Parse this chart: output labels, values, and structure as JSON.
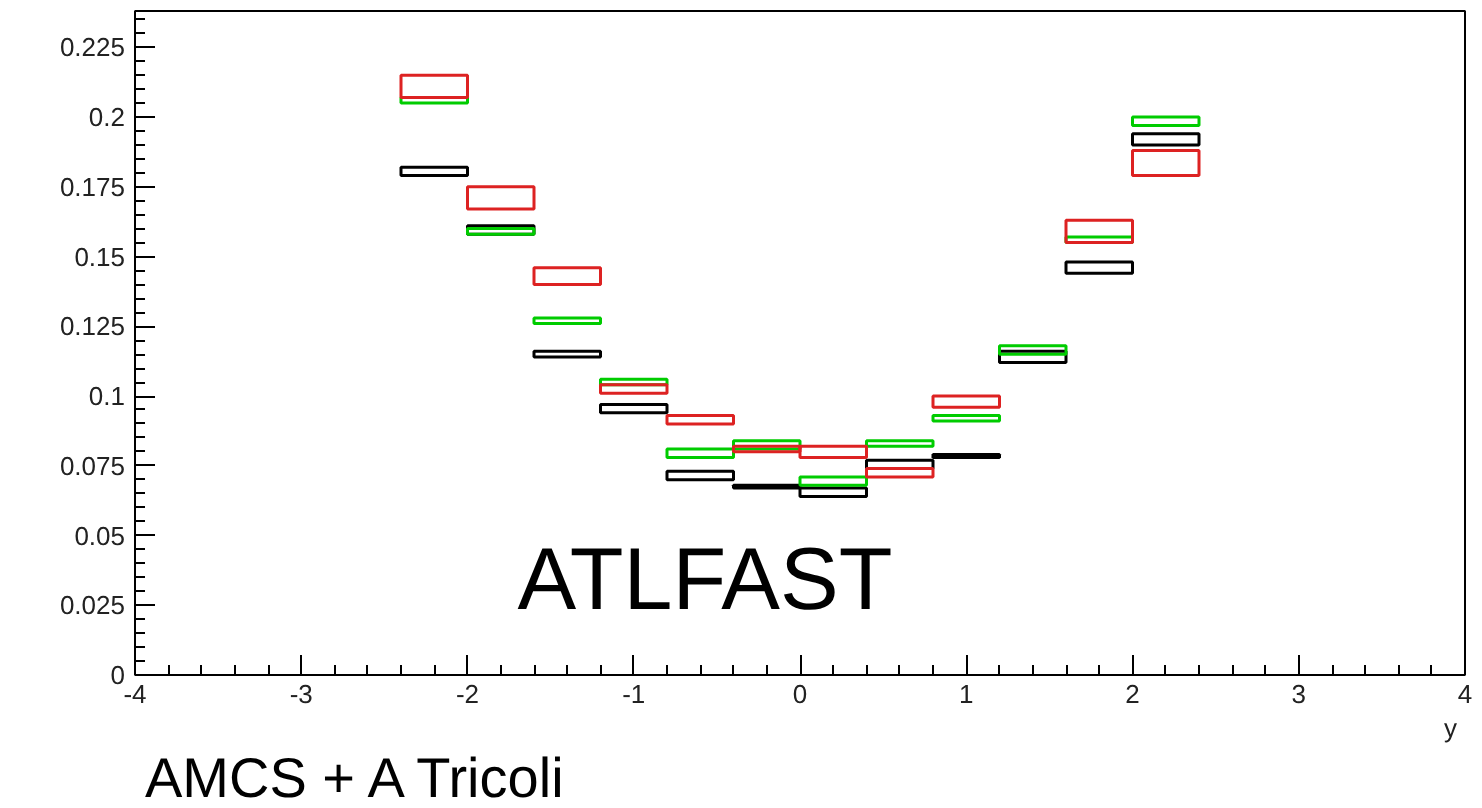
{
  "chart_data": {
    "type": "bar",
    "xlabel": "y",
    "x": [
      -2.2,
      -1.8,
      -1.4,
      -1.0,
      -0.6,
      -0.2,
      0.2,
      0.6,
      1.0,
      1.4,
      1.8,
      2.2
    ],
    "series": [
      {
        "color": "#000000",
        "base": [
          0.179,
          0.158,
          0.114,
          0.094,
          0.07,
          0.067,
          0.064,
          0.074,
          0.078,
          0.112,
          0.144,
          0.19
        ],
        "values": [
          0.003,
          0.003,
          0.002,
          0.003,
          0.003,
          0.001,
          0.003,
          0.003,
          0.001,
          0.004,
          0.004,
          0.004
        ]
      },
      {
        "color": "#00cc00",
        "base": [
          0.205,
          0.158,
          0.126,
          0.104,
          0.078,
          0.081,
          0.068,
          0.082,
          0.091,
          0.115,
          0.155,
          0.197
        ],
        "values": [
          0.002,
          0.002,
          0.002,
          0.002,
          0.003,
          0.003,
          0.003,
          0.002,
          0.002,
          0.003,
          0.002,
          0.003
        ]
      },
      {
        "color": "#dd2222",
        "base": [
          0.207,
          0.167,
          0.14,
          0.101,
          0.09,
          0.08,
          0.078,
          0.071,
          0.096,
          null,
          0.155,
          0.179
        ],
        "values": [
          0.008,
          0.008,
          0.006,
          0.003,
          0.003,
          0.002,
          0.004,
          0.003,
          0.004,
          null,
          0.008,
          0.009
        ]
      }
    ],
    "xlim": [
      -4,
      4
    ],
    "xticks": [
      -4,
      -3,
      -2,
      -1,
      0,
      1,
      2,
      3,
      4
    ],
    "ylim": [
      0,
      0.238
    ],
    "yticks": [
      0,
      0.025,
      0.05,
      0.075,
      0.1,
      0.125,
      0.15,
      0.175,
      0.2,
      0.225
    ],
    "grid": false,
    "annotations": [
      "ATLFAST",
      "AMCS + A Tricoli"
    ]
  }
}
